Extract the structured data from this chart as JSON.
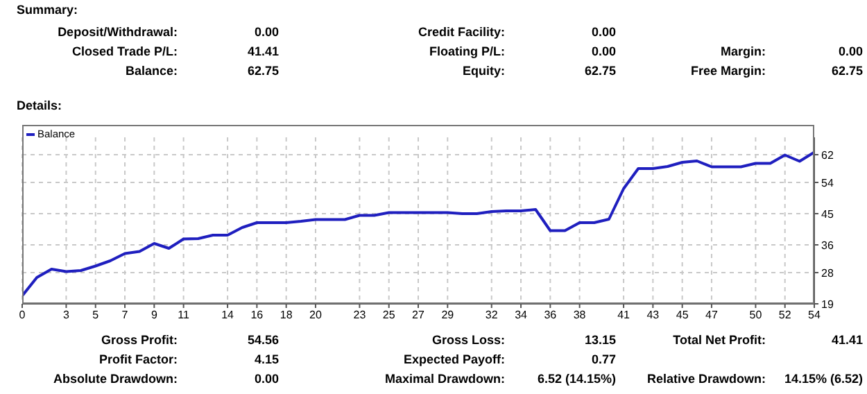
{
  "chart_data": {
    "type": "line",
    "title": "Summary:",
    "subtitle": "Details:",
    "x": [
      0,
      1,
      2,
      3,
      4,
      5,
      6,
      7,
      8,
      9,
      10,
      11,
      12,
      13,
      14,
      15,
      16,
      17,
      18,
      19,
      20,
      21,
      22,
      23,
      24,
      25,
      26,
      27,
      28,
      29,
      30,
      31,
      32,
      33,
      34,
      35,
      36,
      37,
      38,
      39,
      40,
      41,
      42,
      43,
      44,
      45,
      46,
      47,
      48,
      49,
      50,
      51,
      52,
      53,
      54
    ],
    "series": [
      {
        "name": "Balance",
        "color": "#1f1fbf",
        "values": [
          21.3,
          26.6,
          29.0,
          28.3,
          28.6,
          29.9,
          31.4,
          33.5,
          34.1,
          36.4,
          35.0,
          37.7,
          37.8,
          38.8,
          38.8,
          41.0,
          42.4,
          42.4,
          42.4,
          42.8,
          43.3,
          43.3,
          43.3,
          44.5,
          44.5,
          45.3,
          45.3,
          45.3,
          45.3,
          45.3,
          45.0,
          45.0,
          45.6,
          45.8,
          45.8,
          46.2,
          40.1,
          40.1,
          42.4,
          42.4,
          43.4,
          52.2,
          58.0,
          58.0,
          58.6,
          59.8,
          60.2,
          58.5,
          58.5,
          58.5,
          59.5,
          59.5,
          61.9,
          60.1,
          62.7
        ]
      }
    ],
    "xlim": [
      0,
      54
    ],
    "xticks": [
      0,
      3,
      5,
      7,
      9,
      11,
      14,
      16,
      18,
      20,
      23,
      25,
      27,
      29,
      32,
      34,
      36,
      38,
      41,
      43,
      45,
      47,
      50,
      52,
      54
    ],
    "ylim": [
      19,
      67
    ],
    "yticks": [
      19,
      28,
      36,
      45,
      54,
      62
    ],
    "grid": true,
    "legend": "top left",
    "marker": "none",
    "line_style": "solid",
    "annotations": [
      "Deposit/Withdrawal:",
      "0.00",
      "Credit Facility:",
      "0.00",
      "Closed Trade P/L:",
      "41.41",
      "Floating P/L:",
      "0.00",
      "Margin:",
      "0.00",
      "Balance:",
      "62.75",
      "Equity:",
      "62.75",
      "Free Margin:",
      "62.75",
      "Gross Profit:",
      "54.56",
      "Gross Loss:",
      "13.15",
      "Total Net Profit:",
      "41.41",
      "Profit Factor:",
      "4.15",
      "Expected Payoff:",
      "0.77",
      null,
      null,
      "Absolute Drawdown:",
      "0.00",
      "Maximal Drawdown:",
      "6.52 (14.15%)",
      "Relative Drawdown:",
      "14.15% (6.52)"
    ]
  }
}
